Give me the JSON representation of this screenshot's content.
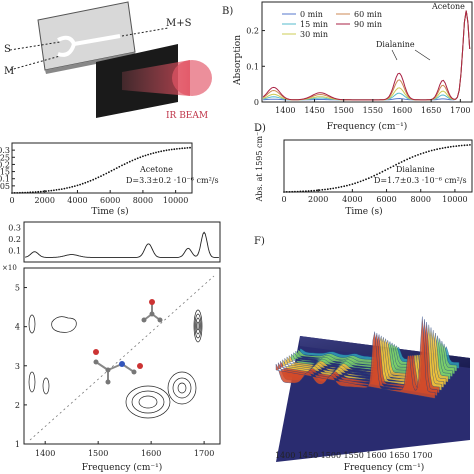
{
  "panel_labels": {
    "B": "B)",
    "D": "D)",
    "F": "F)"
  },
  "panel_a": {
    "label_s": "S",
    "label_m": "M",
    "label_ms": "M+S",
    "label_ir": "IR BEAM"
  },
  "colors": {
    "c0": "#5577cc",
    "c15": "#55bbcc",
    "c30": "#cccc55",
    "c60": "#cc8855",
    "c90": "#aa2244",
    "dots": "#111111"
  },
  "chart_data": [
    {
      "id": "B",
      "type": "line",
      "xlabel": "Frequency (cm⁻¹)",
      "ylabel": "Absorption",
      "xlim": [
        1360,
        1720
      ],
      "ylim": [
        0,
        0.28
      ],
      "xticks": [
        1400,
        1450,
        1500,
        1550,
        1600,
        1650,
        1700
      ],
      "yticks": [
        0,
        0.1,
        0.2
      ],
      "annotations": [
        "Acetone",
        "Dialanine"
      ],
      "series": [
        {
          "name": "0 min",
          "color": "#5577cc"
        },
        {
          "name": "15 min",
          "color": "#55bbcc"
        },
        {
          "name": "30 min",
          "color": "#cccc55"
        },
        {
          "name": "60 min",
          "color": "#cc8855"
        },
        {
          "name": "90 min",
          "color": "#aa2244"
        }
      ]
    },
    {
      "id": "C",
      "type": "scatter",
      "xlabel": "Time (s)",
      "xlim": [
        0,
        11000
      ],
      "ylim": [
        0,
        0.35
      ],
      "xticks": [
        0,
        2000,
        4000,
        6000,
        8000,
        10000
      ],
      "yticks": [
        0,
        0.05,
        0.1,
        0.15,
        0.2,
        0.25,
        0.3
      ],
      "annotation_name": "Acetone",
      "annotation_d": "D=3.3±0.2 ·10⁻⁶ cm²/s"
    },
    {
      "id": "D",
      "type": "scatter",
      "xlabel": "Time (s)",
      "ylabel": "Abs. at 1595 cm⁻¹",
      "xlim": [
        0,
        11000
      ],
      "ylim": [
        0,
        0.16
      ],
      "xticks": [
        0,
        2000,
        4000,
        6000,
        8000,
        10000
      ],
      "annotation_name": "Dialanine",
      "annotation_d": "D=1.7±0.3 ·10⁻⁶ cm²/s"
    },
    {
      "id": "E",
      "type": "line",
      "xlabel": "Frequency (cm⁻¹)",
      "xlim": [
        1360,
        1730
      ],
      "top_yticks": [
        0.1,
        0.2,
        0.3
      ],
      "ylim": [
        1,
        5.5
      ],
      "yticks": [
        1,
        2,
        3,
        4,
        5
      ],
      "xticks": [
        1400,
        1500,
        1600,
        1700
      ],
      "y_multiplier": "×10"
    },
    {
      "id": "F",
      "type": "area",
      "xlabel": "Frequency (cm⁻¹)",
      "xticks": [
        1400,
        1450,
        1500,
        1550,
        1600,
        1650,
        1700
      ]
    }
  ]
}
